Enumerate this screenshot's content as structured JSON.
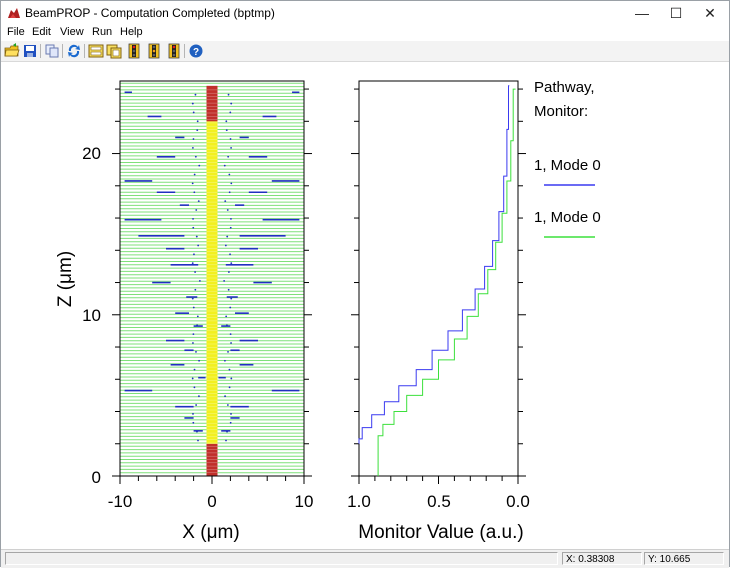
{
  "window": {
    "title": "BeamPROP - Computation Completed (bptmp)",
    "minimize": "—",
    "maximize": "☐",
    "close": "✕"
  },
  "menu": [
    "File",
    "Edit",
    "View",
    "Run",
    "Help"
  ],
  "toolbar": [
    "open-icon",
    "save-icon",
    "copy-icon",
    "run-icon",
    "plot-icon",
    "view-icon",
    "traffic-light-icon",
    "traffic-light-icon",
    "traffic-light-icon",
    "help-icon"
  ],
  "colors": {
    "waveguide_green": "#7fe07a",
    "core_yellow": "#f2f020",
    "core_red": "#c0302a",
    "field_blue": "#2030c0",
    "monitor_blue": "#3a3af0",
    "monitor_green": "#3ce03c"
  },
  "chart_data": [
    {
      "type": "heatmap",
      "title": "",
      "xlabel": "X (μm)",
      "ylabel": "Z (μm)",
      "xlim": [
        -10,
        10
      ],
      "ylim": [
        0,
        24.5
      ],
      "x_ticks": [
        "-10",
        "0",
        "10"
      ],
      "y_ticks": [
        "0",
        "10",
        "20"
      ],
      "core_segments": [
        {
          "z0": 0,
          "z1": 2,
          "color": "red"
        },
        {
          "z0": 2,
          "z1": 22,
          "color": "yellow"
        },
        {
          "z0": 22,
          "z1": 24.2,
          "color": "red"
        }
      ]
    },
    {
      "type": "line",
      "xlabel": "Monitor Value (a.u.)",
      "xlim": [
        1.0,
        0.0
      ],
      "ylim": [
        0,
        24.5
      ],
      "x_ticks": [
        "1.0",
        "0.5",
        "0.0"
      ],
      "legend_title": [
        "Pathway,",
        "Monitor:"
      ],
      "series": [
        {
          "name": "1, Mode 0",
          "color": "blue",
          "x": [
            1.0,
            0.98,
            0.92,
            0.84,
            0.75,
            0.64,
            0.54,
            0.44,
            0.35,
            0.27,
            0.21,
            0.16,
            0.12,
            0.09,
            0.07,
            0.06,
            0.055
          ],
          "z": [
            2.0,
            2.3,
            3.0,
            3.8,
            4.6,
            5.6,
            6.6,
            7.8,
            9.0,
            10.3,
            11.6,
            13.0,
            14.6,
            16.4,
            18.6,
            21.5,
            24.2
          ]
        },
        {
          "name": "1, Mode 0",
          "color": "green",
          "x": [
            0.88,
            0.88,
            0.85,
            0.78,
            0.7,
            0.6,
            0.5,
            0.4,
            0.32,
            0.25,
            0.19,
            0.14,
            0.1,
            0.07,
            0.045,
            0.03,
            0.015
          ],
          "z": [
            0.0,
            2.0,
            2.5,
            3.2,
            4.0,
            5.0,
            6.0,
            7.2,
            8.5,
            9.9,
            11.3,
            12.8,
            14.5,
            16.3,
            18.3,
            20.8,
            24.0
          ]
        }
      ]
    }
  ],
  "status": {
    "x_readout": "X: 0.38308",
    "y_readout": "Y: 10.665"
  }
}
